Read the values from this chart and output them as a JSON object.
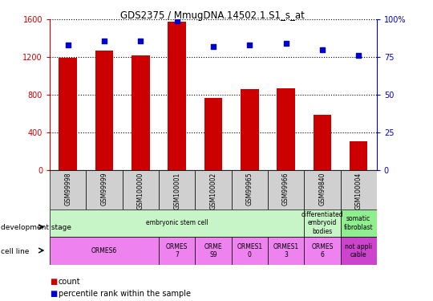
{
  "title": "GDS2375 / MmugDNA.14502.1.S1_s_at",
  "samples": [
    "GSM99998",
    "GSM99999",
    "GSM100000",
    "GSM100001",
    "GSM100002",
    "GSM99965",
    "GSM99966",
    "GSM99840",
    "GSM100004"
  ],
  "counts": [
    1190,
    1270,
    1220,
    1580,
    770,
    860,
    870,
    590,
    310
  ],
  "percentiles": [
    83,
    86,
    86,
    99,
    82,
    83,
    84,
    80,
    76
  ],
  "bar_color": "#cc0000",
  "dot_color": "#0000cc",
  "ylim_left": [
    0,
    1600
  ],
  "ylim_right": [
    0,
    100
  ],
  "yticks_left": [
    0,
    400,
    800,
    1200,
    1600
  ],
  "yticks_right": [
    0,
    25,
    50,
    75,
    100
  ],
  "yticklabels_right": [
    "0",
    "25",
    "50",
    "75",
    "100%"
  ],
  "bg_color": "#ffffff",
  "grid_color": "#000000",
  "left_axis_color": "#cc0000",
  "right_axis_color": "#0000cc",
  "tick_bg_color": "#d0d0d0",
  "dev_stage_rows": [
    {
      "span": [
        0,
        7
      ],
      "label": "embryonic stem cell",
      "color": "#c8f5c8"
    },
    {
      "span": [
        7,
        8
      ],
      "label": "differentiated\nembryoid\nbodies",
      "color": "#c8f5c8"
    },
    {
      "span": [
        8,
        9
      ],
      "label": "somatic\nfibroblast",
      "color": "#90ee90"
    }
  ],
  "cell_line_rows": [
    {
      "span": [
        0,
        3
      ],
      "label": "ORMES6",
      "color": "#ee82ee"
    },
    {
      "span": [
        3,
        4
      ],
      "label": "ORMES\n7",
      "color": "#ee82ee"
    },
    {
      "span": [
        4,
        5
      ],
      "label": "ORME\nS9",
      "color": "#ee82ee"
    },
    {
      "span": [
        5,
        6
      ],
      "label": "ORMES1\n0",
      "color": "#ee82ee"
    },
    {
      "span": [
        6,
        7
      ],
      "label": "ORMES1\n3",
      "color": "#ee82ee"
    },
    {
      "span": [
        7,
        8
      ],
      "label": "ORMES\n6",
      "color": "#ee82ee"
    },
    {
      "span": [
        8,
        9
      ],
      "label": "not appli\ncable",
      "color": "#cc44cc"
    }
  ]
}
